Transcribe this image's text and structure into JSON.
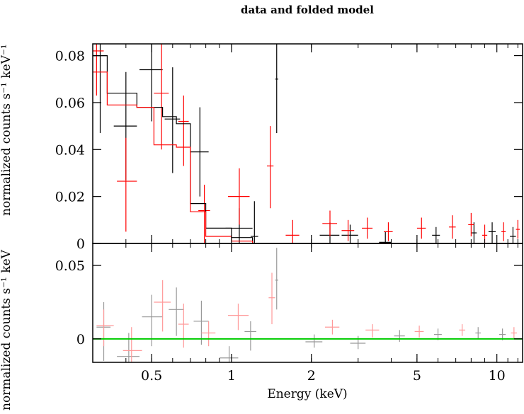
{
  "chart_data": [
    {
      "type": "scatter",
      "title": "data and folded model",
      "ylabel": "normalized counts s⁻¹ keV⁻¹",
      "x_scale": "log",
      "xlim": [
        0.3,
        12.5
      ],
      "ylim": [
        0,
        0.085
      ],
      "grid": false,
      "yticks": [
        {
          "value": 0,
          "label": "0"
        },
        {
          "value": 0.02,
          "label": "0.02"
        },
        {
          "value": 0.04,
          "label": "0.04"
        },
        {
          "value": 0.06,
          "label": "0.06"
        },
        {
          "value": 0.08,
          "label": "0.08"
        }
      ],
      "series": [
        {
          "color": "#000000",
          "kind": "data",
          "points": [
            {
              "x": 0.32,
              "xlo": 0.3,
              "xhi": 0.34,
              "y": 0.08,
              "ylo": 0.047,
              "yhi": 0.085
            },
            {
              "x": 0.4,
              "xlo": 0.36,
              "xhi": 0.44,
              "y": 0.05,
              "ylo": 0.027,
              "yhi": 0.073
            },
            {
              "x": 0.5,
              "xlo": 0.45,
              "xhi": 0.55,
              "y": 0.074,
              "ylo": 0.052,
              "yhi": 0.085
            },
            {
              "x": 0.6,
              "xlo": 0.56,
              "xhi": 0.64,
              "y": 0.053,
              "ylo": 0.03,
              "yhi": 0.075
            },
            {
              "x": 0.76,
              "xlo": 0.7,
              "xhi": 0.82,
              "y": 0.039,
              "ylo": 0.02,
              "yhi": 0.058
            },
            {
              "x": 1.07,
              "xlo": 0.95,
              "xhi": 1.2,
              "y": 0.0065,
              "ylo": 0,
              "yhi": 0.015
            },
            {
              "x": 1.22,
              "xlo": 1.18,
              "xhi": 1.26,
              "y": 0.003,
              "ylo": 0,
              "yhi": 0.018
            },
            {
              "x": 1.48,
              "xlo": 1.46,
              "xhi": 1.5,
              "y": 0.07,
              "ylo": 0.047,
              "yhi": 0.085
            },
            {
              "x": 2.35,
              "xlo": 2.15,
              "xhi": 2.55,
              "y": 0.0035,
              "ylo": 0,
              "yhi": 0.009
            },
            {
              "x": 2.8,
              "xlo": 2.6,
              "xhi": 3.0,
              "y": 0.0035,
              "ylo": 0,
              "yhi": 0.008
            },
            {
              "x": 3.8,
              "xlo": 3.6,
              "xhi": 4.0,
              "y": 0.0005,
              "ylo": 0,
              "yhi": 0.005
            },
            {
              "x": 5.9,
              "xlo": 5.7,
              "xhi": 6.1,
              "y": 0.0035,
              "ylo": 0,
              "yhi": 0.007
            },
            {
              "x": 8.2,
              "xlo": 8.0,
              "xhi": 8.4,
              "y": 0.0045,
              "ylo": 0,
              "yhi": 0.009
            },
            {
              "x": 9.6,
              "xlo": 9.3,
              "xhi": 9.9,
              "y": 0.005,
              "ylo": 0,
              "yhi": 0.009
            },
            {
              "x": 11.5,
              "xlo": 11.2,
              "xhi": 11.8,
              "y": 0.003,
              "ylo": 0,
              "yhi": 0.007
            }
          ]
        },
        {
          "color": "#ff0000",
          "kind": "data",
          "points": [
            {
              "x": 0.31,
              "xlo": 0.3,
              "xhi": 0.33,
              "y": 0.082,
              "ylo": 0.063,
              "yhi": 0.085
            },
            {
              "x": 0.4,
              "xlo": 0.37,
              "xhi": 0.44,
              "y": 0.0265,
              "ylo": 0.005,
              "yhi": 0.045
            },
            {
              "x": 0.545,
              "xlo": 0.51,
              "xhi": 0.58,
              "y": 0.064,
              "ylo": 0.04,
              "yhi": 0.085
            },
            {
              "x": 0.66,
              "xlo": 0.63,
              "xhi": 0.69,
              "y": 0.052,
              "ylo": 0.033,
              "yhi": 0.063
            },
            {
              "x": 0.79,
              "xlo": 0.75,
              "xhi": 0.83,
              "y": 0.014,
              "ylo": 0,
              "yhi": 0.025
            },
            {
              "x": 1.07,
              "xlo": 0.97,
              "xhi": 1.17,
              "y": 0.02,
              "ylo": 0.008,
              "yhi": 0.032
            },
            {
              "x": 1.4,
              "xlo": 1.36,
              "xhi": 1.44,
              "y": 0.033,
              "ylo": 0.015,
              "yhi": 0.05
            },
            {
              "x": 1.7,
              "xlo": 1.6,
              "xhi": 1.8,
              "y": 0.0035,
              "ylo": 0,
              "yhi": 0.01
            },
            {
              "x": 2.35,
              "xlo": 2.2,
              "xhi": 2.5,
              "y": 0.0085,
              "ylo": 0.003,
              "yhi": 0.014
            },
            {
              "x": 2.75,
              "xlo": 2.6,
              "xhi": 2.9,
              "y": 0.0055,
              "ylo": 0.001,
              "yhi": 0.01
            },
            {
              "x": 3.25,
              "xlo": 3.1,
              "xhi": 3.4,
              "y": 0.0065,
              "ylo": 0.002,
              "yhi": 0.011
            },
            {
              "x": 3.9,
              "xlo": 3.75,
              "xhi": 4.05,
              "y": 0.005,
              "ylo": 0.001,
              "yhi": 0.009
            },
            {
              "x": 5.2,
              "xlo": 5.0,
              "xhi": 5.4,
              "y": 0.0065,
              "ylo": 0.002,
              "yhi": 0.011
            },
            {
              "x": 6.8,
              "xlo": 6.6,
              "xhi": 7.0,
              "y": 0.007,
              "ylo": 0.002,
              "yhi": 0.012
            },
            {
              "x": 8.0,
              "xlo": 7.8,
              "xhi": 8.2,
              "y": 0.008,
              "ylo": 0.003,
              "yhi": 0.013
            },
            {
              "x": 9.0,
              "xlo": 8.8,
              "xhi": 9.2,
              "y": 0.0035,
              "ylo": 0,
              "yhi": 0.008
            },
            {
              "x": 10.6,
              "xlo": 10.4,
              "xhi": 10.8,
              "y": 0.005,
              "ylo": 0.001,
              "yhi": 0.009
            },
            {
              "x": 12.0,
              "xlo": 11.8,
              "xhi": 12.2,
              "y": 0.006,
              "ylo": 0.002,
              "yhi": 0.01
            }
          ]
        },
        {
          "color": "#000000",
          "kind": "model-step",
          "steps": [
            {
              "xlo": 0.3,
              "xhi": 0.34,
              "y": 0.08
            },
            {
              "xlo": 0.34,
              "xhi": 0.44,
              "y": 0.064
            },
            {
              "xlo": 0.44,
              "xhi": 0.55,
              "y": 0.058
            },
            {
              "xlo": 0.55,
              "xhi": 0.62,
              "y": 0.054
            },
            {
              "xlo": 0.62,
              "xhi": 0.7,
              "y": 0.051
            },
            {
              "xlo": 0.7,
              "xhi": 0.8,
              "y": 0.017
            },
            {
              "xlo": 0.8,
              "xhi": 1.0,
              "y": 0.0065
            },
            {
              "xlo": 1.0,
              "xhi": 1.2,
              "y": 0.0025
            },
            {
              "xlo": 1.2,
              "xhi": 12.5,
              "y": 0.0
            }
          ]
        },
        {
          "color": "#ff0000",
          "kind": "model-step",
          "steps": [
            {
              "xlo": 0.3,
              "xhi": 0.34,
              "y": 0.073
            },
            {
              "xlo": 0.34,
              "xhi": 0.44,
              "y": 0.059
            },
            {
              "xlo": 0.44,
              "xhi": 0.51,
              "y": 0.058
            },
            {
              "xlo": 0.51,
              "xhi": 0.62,
              "y": 0.042
            },
            {
              "xlo": 0.62,
              "xhi": 0.7,
              "y": 0.041
            },
            {
              "xlo": 0.7,
              "xhi": 0.8,
              "y": 0.0135
            },
            {
              "xlo": 0.8,
              "xhi": 1.0,
              "y": 0.003
            },
            {
              "xlo": 1.0,
              "xhi": 1.2,
              "y": 0.001
            },
            {
              "xlo": 1.2,
              "xhi": 12.5,
              "y": 0.0
            }
          ]
        }
      ]
    },
    {
      "type": "scatter",
      "xlabel": "Energy (keV)",
      "ylabel": "normalized counts s⁻¹ keV",
      "x_scale": "log",
      "xlim": [
        0.3,
        12.5
      ],
      "ylim": [
        -0.016,
        0.065
      ],
      "grid": false,
      "xticks": [
        {
          "value": 0.5,
          "label": "0.5"
        },
        {
          "value": 1,
          "label": "1"
        },
        {
          "value": 2,
          "label": "2"
        },
        {
          "value": 5,
          "label": "5"
        },
        {
          "value": 10,
          "label": "10"
        }
      ],
      "yticks": [
        {
          "value": 0,
          "label": "0"
        },
        {
          "value": 0.05,
          "label": "0.05"
        }
      ],
      "series": [
        {
          "color": "#999999",
          "kind": "data",
          "points": [
            {
              "x": 0.33,
              "xlo": 0.31,
              "xhi": 0.35,
              "y": 0.008,
              "ylo": -0.015,
              "yhi": 0.025
            },
            {
              "x": 0.41,
              "xlo": 0.37,
              "xhi": 0.45,
              "y": -0.012,
              "ylo": -0.016,
              "yhi": 0.004
            },
            {
              "x": 0.5,
              "xlo": 0.46,
              "xhi": 0.55,
              "y": 0.015,
              "ylo": -0.005,
              "yhi": 0.03
            },
            {
              "x": 0.62,
              "xlo": 0.58,
              "xhi": 0.66,
              "y": 0.02,
              "ylo": 0.002,
              "yhi": 0.035
            },
            {
              "x": 0.77,
              "xlo": 0.72,
              "xhi": 0.82,
              "y": 0.012,
              "ylo": -0.004,
              "yhi": 0.026
            },
            {
              "x": 0.98,
              "xlo": 0.9,
              "xhi": 1.06,
              "y": -0.013,
              "ylo": -0.016,
              "yhi": -0.005
            },
            {
              "x": 1.18,
              "xlo": 1.12,
              "xhi": 1.24,
              "y": 0.005,
              "ylo": -0.008,
              "yhi": 0.012
            },
            {
              "x": 1.48,
              "xlo": 1.46,
              "xhi": 1.5,
              "y": 0.04,
              "ylo": 0.02,
              "yhi": 0.062
            },
            {
              "x": 2.05,
              "xlo": 1.9,
              "xhi": 2.2,
              "y": -0.002,
              "ylo": -0.006,
              "yhi": 0.003
            },
            {
              "x": 3.0,
              "xlo": 2.8,
              "xhi": 3.2,
              "y": -0.003,
              "ylo": -0.007,
              "yhi": 0.002
            },
            {
              "x": 4.3,
              "xlo": 4.1,
              "xhi": 4.5,
              "y": 0.002,
              "ylo": -0.002,
              "yhi": 0.006
            },
            {
              "x": 6.0,
              "xlo": 5.8,
              "xhi": 6.2,
              "y": 0.003,
              "ylo": -0.001,
              "yhi": 0.007
            },
            {
              "x": 8.5,
              "xlo": 8.3,
              "xhi": 8.7,
              "y": 0.004,
              "ylo": 0.0,
              "yhi": 0.008
            },
            {
              "x": 10.5,
              "xlo": 10.2,
              "xhi": 10.8,
              "y": 0.003,
              "ylo": -0.001,
              "yhi": 0.007
            }
          ]
        },
        {
          "color": "#ff9999",
          "kind": "data",
          "points": [
            {
              "x": 0.33,
              "xlo": 0.31,
              "xhi": 0.36,
              "y": 0.009,
              "ylo": -0.005,
              "yhi": 0.02
            },
            {
              "x": 0.42,
              "xlo": 0.39,
              "xhi": 0.46,
              "y": -0.008,
              "ylo": -0.016,
              "yhi": 0.008
            },
            {
              "x": 0.55,
              "xlo": 0.51,
              "xhi": 0.59,
              "y": 0.025,
              "ylo": 0.005,
              "yhi": 0.04
            },
            {
              "x": 0.66,
              "xlo": 0.63,
              "xhi": 0.69,
              "y": 0.01,
              "ylo": -0.006,
              "yhi": 0.024
            },
            {
              "x": 0.82,
              "xlo": 0.77,
              "xhi": 0.87,
              "y": 0.004,
              "ylo": -0.005,
              "yhi": 0.012
            },
            {
              "x": 1.06,
              "xlo": 0.97,
              "xhi": 1.16,
              "y": 0.016,
              "ylo": 0.006,
              "yhi": 0.024
            },
            {
              "x": 1.42,
              "xlo": 1.38,
              "xhi": 1.46,
              "y": 0.028,
              "ylo": 0.01,
              "yhi": 0.045
            },
            {
              "x": 2.4,
              "xlo": 2.25,
              "xhi": 2.55,
              "y": 0.008,
              "ylo": 0.003,
              "yhi": 0.013
            },
            {
              "x": 3.4,
              "xlo": 3.2,
              "xhi": 3.6,
              "y": 0.006,
              "ylo": 0.001,
              "yhi": 0.01
            },
            {
              "x": 5.1,
              "xlo": 4.9,
              "xhi": 5.3,
              "y": 0.005,
              "ylo": 0.001,
              "yhi": 0.009
            },
            {
              "x": 7.4,
              "xlo": 7.2,
              "xhi": 7.6,
              "y": 0.006,
              "ylo": 0.002,
              "yhi": 0.01
            },
            {
              "x": 11.6,
              "xlo": 11.3,
              "xhi": 11.9,
              "y": 0.004,
              "ylo": 0.0,
              "yhi": 0.008
            }
          ]
        },
        {
          "color": "#00cc00",
          "kind": "zero-line",
          "y": 0
        }
      ]
    }
  ]
}
